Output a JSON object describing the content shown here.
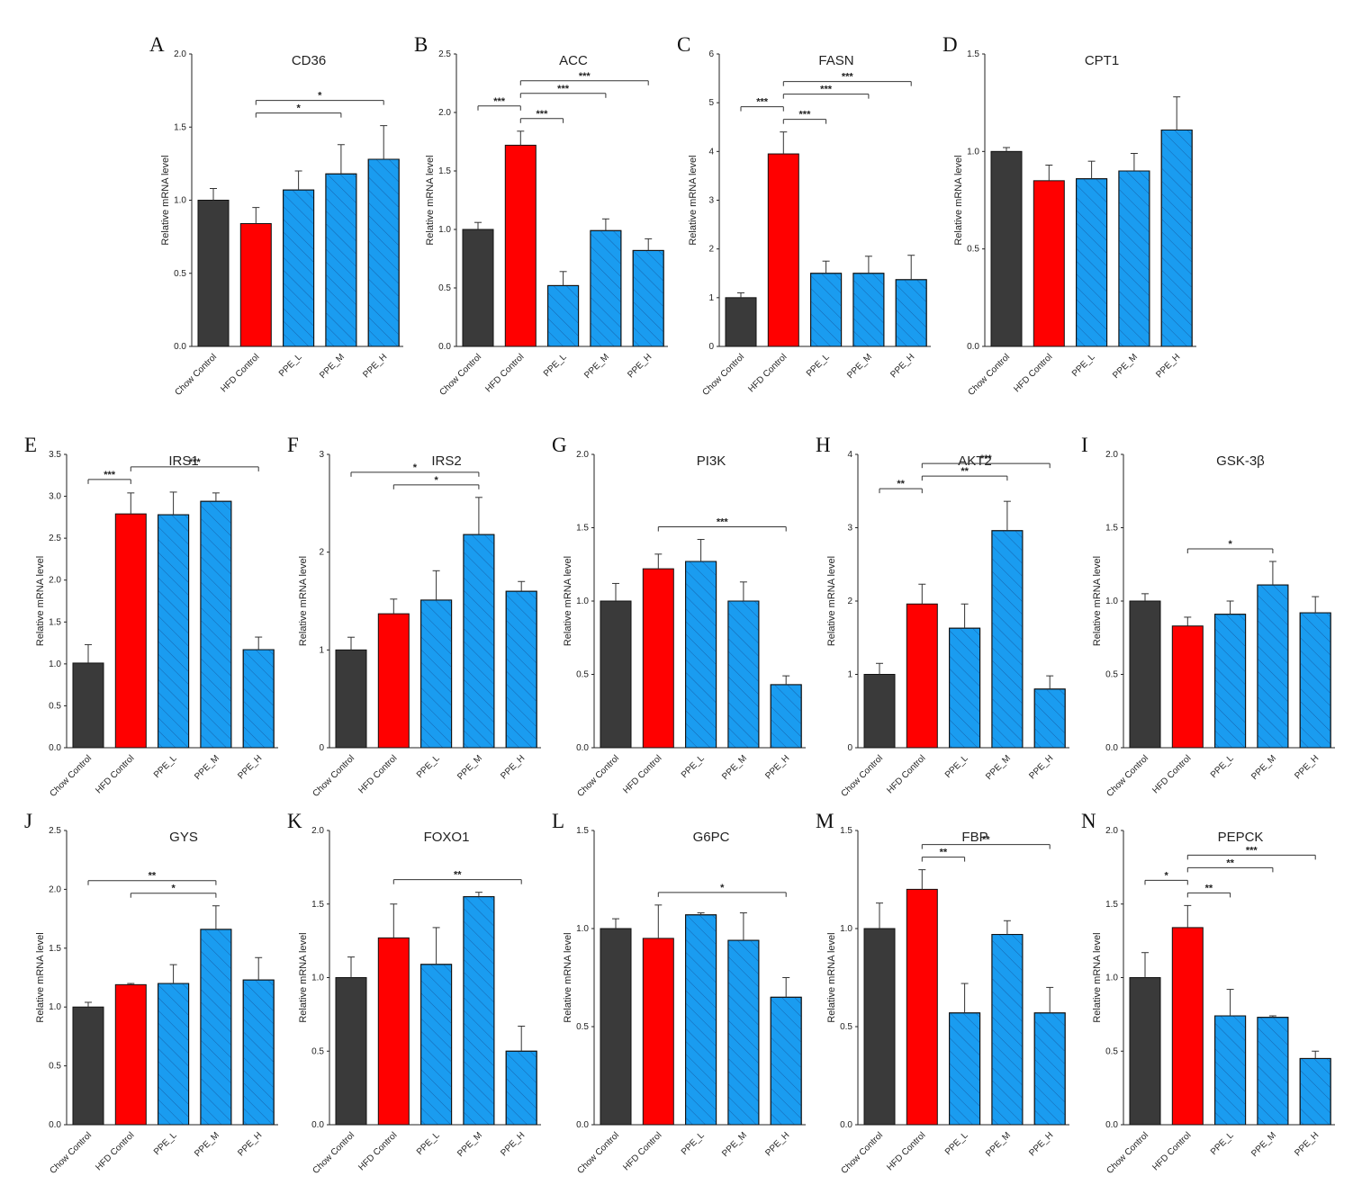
{
  "figure": {
    "ylabel": "Relative mRNA level",
    "categories": [
      "Chow Control",
      "HFD Control",
      "PPE_L",
      "PPE_M",
      "PPE_H"
    ],
    "colors": {
      "chow": "#3a3a3a",
      "hfd": "#ff0000",
      "ppe": "#1a9cf0",
      "hatch": "#1565b0",
      "axis": "#222222"
    }
  },
  "chart_data": [
    {
      "id": "cd36",
      "panel": "A",
      "type": "bar",
      "title": "CD36",
      "ylim": [
        0,
        2.0
      ],
      "yticks": [
        "0.0",
        "0.5",
        "1.0",
        "1.5",
        "2.0"
      ],
      "values": [
        1.0,
        0.84,
        1.07,
        1.18,
        1.28
      ],
      "errors": [
        0.08,
        0.11,
        0.13,
        0.2,
        0.23
      ],
      "sig": [
        {
          "from": 1,
          "to": 4,
          "label": "*"
        },
        {
          "from": 1,
          "to": 3,
          "label": "*"
        }
      ]
    },
    {
      "id": "acc",
      "panel": "B",
      "type": "bar",
      "title": "ACC",
      "ylim": [
        0,
        2.5
      ],
      "yticks": [
        "0.0",
        "0.5",
        "1.0",
        "1.5",
        "2.0",
        "2.5"
      ],
      "values": [
        1.0,
        1.72,
        0.52,
        0.99,
        0.82
      ],
      "errors": [
        0.06,
        0.12,
        0.12,
        0.1,
        0.1
      ],
      "sig": [
        {
          "from": 1,
          "to": 4,
          "label": "***"
        },
        {
          "from": 1,
          "to": 3,
          "label": "***"
        },
        {
          "from": 1,
          "to": 2,
          "label": "***"
        },
        {
          "from": 0,
          "to": 1,
          "label": "***"
        }
      ]
    },
    {
      "id": "fasn",
      "panel": "C",
      "type": "bar",
      "title": "FASN",
      "ylim": [
        0,
        6
      ],
      "yticks": [
        "0",
        "1",
        "2",
        "3",
        "4",
        "5",
        "6"
      ],
      "values": [
        1.0,
        3.95,
        1.5,
        1.5,
        1.37
      ],
      "errors": [
        0.1,
        0.45,
        0.25,
        0.35,
        0.5
      ],
      "sig": [
        {
          "from": 1,
          "to": 4,
          "label": "***"
        },
        {
          "from": 1,
          "to": 3,
          "label": "***"
        },
        {
          "from": 1,
          "to": 2,
          "label": "***"
        },
        {
          "from": 0,
          "to": 1,
          "label": "***"
        }
      ]
    },
    {
      "id": "cpt1",
      "panel": "D",
      "type": "bar",
      "title": "CPT1",
      "ylim": [
        0,
        1.5
      ],
      "yticks": [
        "0.0",
        "0.5",
        "1.0",
        "1.5"
      ],
      "values": [
        1.0,
        0.85,
        0.86,
        0.9,
        1.11
      ],
      "errors": [
        0.02,
        0.08,
        0.09,
        0.09,
        0.17
      ],
      "sig": []
    },
    {
      "id": "irs1",
      "panel": "E",
      "type": "bar",
      "title": "IRS1",
      "ylim": [
        0,
        3.5
      ],
      "yticks": [
        "0.0",
        "0.5",
        "1.0",
        "1.5",
        "2.0",
        "2.5",
        "3.0",
        "3.5"
      ],
      "values": [
        1.01,
        2.79,
        2.78,
        2.94,
        1.17
      ],
      "errors": [
        0.22,
        0.25,
        0.27,
        0.1,
        0.15
      ],
      "sig": [
        {
          "from": 0,
          "to": 1,
          "label": "***"
        },
        {
          "from": 1,
          "to": 4,
          "label": "***"
        }
      ]
    },
    {
      "id": "irs2",
      "panel": "F",
      "type": "bar",
      "title": "IRS2",
      "ylim": [
        0,
        3
      ],
      "yticks": [
        "0",
        "1",
        "2",
        "3"
      ],
      "values": [
        1.0,
        1.37,
        1.51,
        2.18,
        1.6
      ],
      "errors": [
        0.13,
        0.15,
        0.3,
        0.38,
        0.1
      ],
      "sig": [
        {
          "from": 0,
          "to": 3,
          "label": "*"
        },
        {
          "from": 1,
          "to": 3,
          "label": "*"
        }
      ]
    },
    {
      "id": "pi3k",
      "panel": "G",
      "type": "bar",
      "title": "PI3K",
      "ylim": [
        0,
        2.0
      ],
      "yticks": [
        "0.0",
        "0.5",
        "1.0",
        "1.5",
        "2.0"
      ],
      "values": [
        1.0,
        1.22,
        1.27,
        1.0,
        0.43
      ],
      "errors": [
        0.12,
        0.1,
        0.15,
        0.13,
        0.06
      ],
      "sig": [
        {
          "from": 1,
          "to": 4,
          "label": "***"
        }
      ]
    },
    {
      "id": "akt2",
      "panel": "H",
      "type": "bar",
      "title": "AKT2",
      "ylim": [
        0,
        4
      ],
      "yticks": [
        "0",
        "1",
        "2",
        "3",
        "4"
      ],
      "values": [
        1.0,
        1.96,
        1.63,
        2.96,
        0.8
      ],
      "errors": [
        0.15,
        0.27,
        0.33,
        0.4,
        0.18
      ],
      "sig": [
        {
          "from": 1,
          "to": 4,
          "label": "***"
        },
        {
          "from": 1,
          "to": 3,
          "label": "**"
        },
        {
          "from": 0,
          "to": 1,
          "label": "**"
        }
      ]
    },
    {
      "id": "gsk3b",
      "panel": "I",
      "type": "bar",
      "title": "GSK-3β",
      "ylim": [
        0,
        2.0
      ],
      "yticks": [
        "0.0",
        "0.5",
        "1.0",
        "1.5",
        "2.0"
      ],
      "values": [
        1.0,
        0.83,
        0.91,
        1.11,
        0.92
      ],
      "errors": [
        0.05,
        0.06,
        0.09,
        0.16,
        0.11
      ],
      "sig": [
        {
          "from": 1,
          "to": 3,
          "label": "*"
        }
      ]
    },
    {
      "id": "gys",
      "panel": "J",
      "type": "bar",
      "title": "GYS",
      "ylim": [
        0,
        2.5
      ],
      "yticks": [
        "0.0",
        "0.5",
        "1.0",
        "1.5",
        "2.0",
        "2.5"
      ],
      "values": [
        1.0,
        1.19,
        1.2,
        1.66,
        1.23
      ],
      "errors": [
        0.04,
        0.01,
        0.16,
        0.2,
        0.19
      ],
      "sig": [
        {
          "from": 0,
          "to": 3,
          "label": "**"
        },
        {
          "from": 1,
          "to": 3,
          "label": "*"
        }
      ]
    },
    {
      "id": "foxo1",
      "panel": "K",
      "type": "bar",
      "title": "FOXO1",
      "ylim": [
        0,
        2.0
      ],
      "yticks": [
        "0.0",
        "0.5",
        "1.0",
        "1.5",
        "2.0"
      ],
      "values": [
        1.0,
        1.27,
        1.09,
        1.55,
        0.5
      ],
      "errors": [
        0.14,
        0.23,
        0.25,
        0.03,
        0.17
      ],
      "sig": [
        {
          "from": 1,
          "to": 4,
          "label": "**"
        }
      ]
    },
    {
      "id": "g6pc",
      "panel": "L",
      "type": "bar",
      "title": "G6PC",
      "ylim": [
        0,
        1.5
      ],
      "yticks": [
        "0.0",
        "0.5",
        "1.0",
        "1.5"
      ],
      "values": [
        1.0,
        0.95,
        1.07,
        0.94,
        0.65
      ],
      "errors": [
        0.05,
        0.17,
        0.01,
        0.14,
        0.1
      ],
      "sig": [
        {
          "from": 1,
          "to": 4,
          "label": "*"
        }
      ]
    },
    {
      "id": "fbp",
      "panel": "M",
      "type": "bar",
      "title": "FBP",
      "ylim": [
        0,
        1.5
      ],
      "yticks": [
        "0.0",
        "0.5",
        "1.0",
        "1.5"
      ],
      "values": [
        1.0,
        1.2,
        0.57,
        0.97,
        0.57
      ],
      "errors": [
        0.13,
        0.1,
        0.15,
        0.07,
        0.13
      ],
      "sig": [
        {
          "from": 1,
          "to": 4,
          "label": "**"
        },
        {
          "from": 1,
          "to": 2,
          "label": "**"
        }
      ]
    },
    {
      "id": "pepck",
      "panel": "N",
      "type": "bar",
      "title": "PEPCK",
      "ylim": [
        0,
        2.0
      ],
      "yticks": [
        "0.0",
        "0.5",
        "1.0",
        "1.5",
        "2.0"
      ],
      "values": [
        1.0,
        1.34,
        0.74,
        0.73,
        0.45
      ],
      "errors": [
        0.17,
        0.15,
        0.18,
        0.01,
        0.05
      ],
      "sig": [
        {
          "from": 1,
          "to": 4,
          "label": "***"
        },
        {
          "from": 1,
          "to": 3,
          "label": "**"
        },
        {
          "from": 1,
          "to": 2,
          "label": "**"
        },
        {
          "from": 0,
          "to": 1,
          "label": "*"
        }
      ]
    }
  ]
}
